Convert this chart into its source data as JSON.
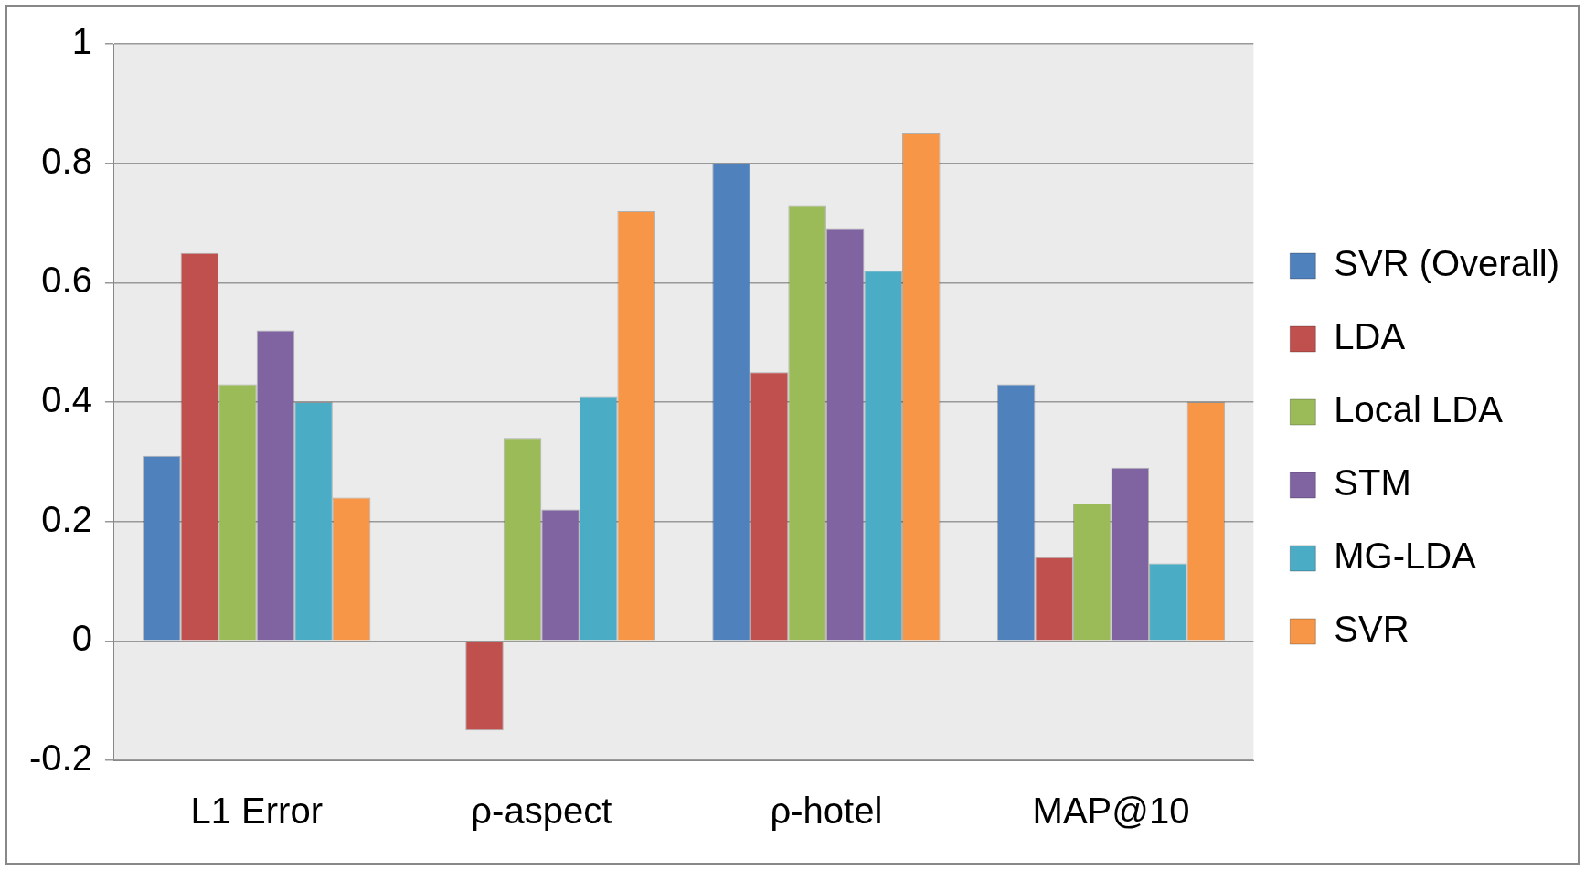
{
  "chart_data": {
    "type": "bar",
    "categories": [
      "L1 Error",
      "ρ-aspect",
      "ρ-hotel",
      "MAP@10"
    ],
    "series": [
      {
        "name": "SVR (Overall)",
        "color": "#4f81bd",
        "values": [
          0.31,
          0,
          0.8,
          0.43
        ]
      },
      {
        "name": "LDA",
        "color": "#c0504d",
        "values": [
          0.65,
          -0.15,
          0.45,
          0.14
        ]
      },
      {
        "name": "Local LDA",
        "color": "#9bbb59",
        "values": [
          0.43,
          0.34,
          0.73,
          0.23
        ]
      },
      {
        "name": "STM",
        "color": "#8064a2",
        "values": [
          0.52,
          0.22,
          0.69,
          0.29
        ]
      },
      {
        "name": "MG-LDA",
        "color": "#4bacc6",
        "values": [
          0.4,
          0.41,
          0.62,
          0.13
        ]
      },
      {
        "name": "SVR",
        "color": "#f79646",
        "values": [
          0.24,
          0.72,
          0.85,
          0.4
        ]
      }
    ],
    "ylim": [
      -0.2,
      1
    ],
    "yticks": [
      -0.2,
      0,
      0.2,
      0.4,
      0.6,
      0.8,
      1
    ],
    "grid": "y",
    "legend": "right"
  }
}
